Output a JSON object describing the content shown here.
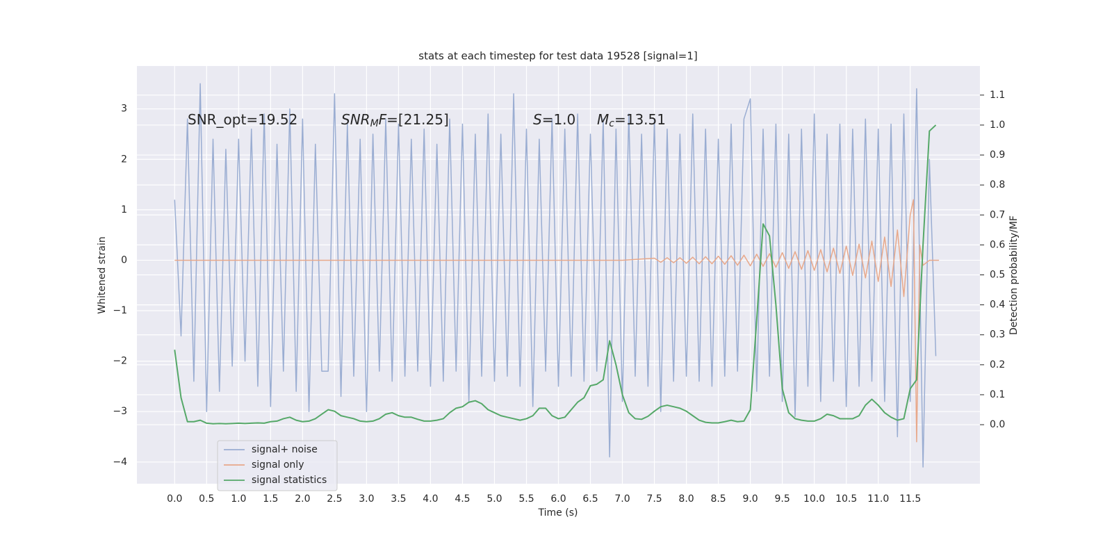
{
  "chart_data": {
    "type": "line",
    "title": "stats at each timestep for test data 19528 [signal=1]",
    "xlabel": "Time (s)",
    "ylabel": "Whitened strain",
    "y2label": "Detection probability/MF",
    "xlim": [
      -0.59,
      12.59
    ],
    "ylim": [
      -4.43,
      3.85
    ],
    "y2lim": [
      -0.197,
      1.197
    ],
    "xticks": [
      {
        "value": 0,
        "label": "0.0"
      },
      0.5,
      {
        "value": 1,
        "label": "1.0"
      },
      1.5,
      {
        "value": 2,
        "label": "2.0"
      },
      2.5,
      {
        "value": 3,
        "label": "3.0"
      },
      3.5,
      {
        "value": 4,
        "label": "4.0"
      },
      4.5,
      {
        "value": 5,
        "label": "5.0"
      },
      5.5,
      {
        "value": 6,
        "label": "6.0"
      },
      6.5,
      {
        "value": 7,
        "label": "7.0"
      },
      7.5,
      {
        "value": 8,
        "label": "8.0"
      },
      8.5,
      {
        "value": 9,
        "label": "9.0"
      },
      9.5,
      {
        "value": 10,
        "label": "10.0"
      },
      10.5,
      {
        "value": 11,
        "label": "11.0"
      },
      11.5
    ],
    "yticks": [
      {
        "value": -4,
        "label": "−4"
      },
      {
        "value": -3,
        "label": "−3"
      },
      {
        "value": -2,
        "label": "−2"
      },
      {
        "value": -1,
        "label": "−1"
      },
      0,
      1,
      2,
      3
    ],
    "y2ticks": [
      {
        "value": 0,
        "label": "0.0"
      },
      0.1,
      0.2,
      0.3,
      0.4,
      0.5,
      0.6,
      0.7,
      0.8,
      0.9,
      {
        "value": 1,
        "label": "1.0"
      },
      1.1
    ],
    "grid": true,
    "legend": "lower left",
    "annotations": [
      {
        "parts": [
          {
            "text": "SNR_opt=19.52",
            "style": "normal"
          }
        ]
      },
      {
        "parts": [
          {
            "text": "SNR",
            "style": "italic"
          },
          {
            "text": "M",
            "style": "sub"
          },
          {
            "text": "F",
            "style": "italic"
          },
          {
            "text": "=[21.25]",
            "style": "normal"
          }
        ]
      },
      {
        "parts": [
          {
            "text": "S",
            "style": "italic"
          },
          {
            "text": "=1.0",
            "style": "normal"
          }
        ]
      },
      {
        "parts": [
          {
            "text": "M",
            "style": "italic"
          },
          {
            "text": "c",
            "style": "sub"
          },
          {
            "text": "=13.51",
            "style": "normal"
          }
        ]
      }
    ],
    "x": [
      0,
      0.1,
      0.2,
      0.3,
      0.4,
      0.5,
      0.6,
      0.7,
      0.8,
      0.9,
      1,
      1.1,
      1.2,
      1.3,
      1.4,
      1.5,
      1.6,
      1.7,
      1.8,
      1.9,
      2,
      2.1,
      2.2,
      2.3,
      2.4,
      2.5,
      2.6,
      2.7,
      2.8,
      2.9,
      3,
      3.1,
      3.2,
      3.3,
      3.4,
      3.5,
      3.6,
      3.7,
      3.8,
      3.9,
      4,
      4.1,
      4.2,
      4.3,
      4.4,
      4.5,
      4.6,
      4.7,
      4.8,
      4.9,
      5,
      5.1,
      5.2,
      5.3,
      5.4,
      5.5,
      5.6,
      5.7,
      5.8,
      5.9,
      6,
      6.1,
      6.2,
      6.3,
      6.4,
      6.5,
      6.6,
      6.7,
      6.8,
      6.9,
      7,
      7.1,
      7.2,
      7.3,
      7.4,
      7.5,
      7.6,
      7.7,
      7.8,
      7.9,
      8,
      8.1,
      8.2,
      8.3,
      8.4,
      8.5,
      8.6,
      8.7,
      8.8,
      8.9,
      9,
      9.1,
      9.2,
      9.3,
      9.4,
      9.5,
      9.6,
      9.7,
      9.8,
      9.9,
      10,
      10.1,
      10.2,
      10.3,
      10.4,
      10.5,
      10.6,
      10.7,
      10.8,
      10.9,
      11,
      11.1,
      11.2,
      11.3,
      11.4,
      11.5,
      11.6,
      11.7,
      11.8,
      11.9
    ],
    "series": [
      {
        "name": "signal+ noise",
        "color": "#9aadd2",
        "values": [
          1.2,
          -1.5,
          2.8,
          -2.4,
          3.5,
          -3.0,
          2.4,
          -2.6,
          2.2,
          -2.1,
          2.4,
          -2.0,
          2.6,
          -2.5,
          2.9,
          -2.9,
          2.3,
          -2.2,
          3.0,
          -2.6,
          2.8,
          -3.0,
          2.3,
          -2.2,
          -2.2,
          3.3,
          -2.7,
          2.7,
          -2.3,
          2.4,
          -3.0,
          2.5,
          -2.2,
          2.8,
          -2.4,
          2.7,
          -2.3,
          2.4,
          -2.2,
          2.6,
          -2.5,
          2.3,
          -2.4,
          2.8,
          -2.2,
          2.7,
          -2.8,
          2.5,
          -2.3,
          2.9,
          -2.4,
          2.5,
          -2.3,
          3.3,
          -2.5,
          2.6,
          -2.9,
          2.4,
          -2.2,
          2.8,
          -2.5,
          2.6,
          -2.3,
          2.9,
          -2.4,
          2.5,
          -2.2,
          2.8,
          -3.9,
          2.6,
          -2.8,
          2.9,
          -2.3,
          2.5,
          -2.5,
          2.8,
          -3.0,
          2.6,
          -2.4,
          2.5,
          -2.3,
          2.9,
          -2.4,
          2.6,
          -2.5,
          2.4,
          -2.3,
          2.7,
          -2.2,
          2.8,
          3.2,
          -2.6,
          2.6,
          -2.3,
          2.7,
          -2.8,
          2.5,
          -3.1,
          2.6,
          -2.5,
          2.9,
          -2.8,
          2.5,
          -2.4,
          2.7,
          -2.9,
          2.6,
          -2.5,
          2.8,
          -2.4,
          2.6,
          -2.8,
          2.7,
          -3.5,
          2.9,
          -2.8,
          3.4,
          -4.1,
          2.0,
          -1.9
        ]
      },
      {
        "name": "signal only",
        "color": "#e8a88a",
        "x": [
          0,
          1,
          2,
          3,
          4,
          5,
          6,
          7,
          7.5,
          7.6,
          7.7,
          7.8,
          7.9,
          8.0,
          8.1,
          8.2,
          8.3,
          8.4,
          8.5,
          8.6,
          8.7,
          8.8,
          8.9,
          9.0,
          9.1,
          9.2,
          9.3,
          9.4,
          9.5,
          9.6,
          9.7,
          9.8,
          9.9,
          10.0,
          10.1,
          10.2,
          10.3,
          10.4,
          10.5,
          10.6,
          10.7,
          10.8,
          10.9,
          11.0,
          11.1,
          11.2,
          11.3,
          11.4,
          11.5,
          11.55,
          11.6,
          11.65,
          11.7,
          11.8,
          11.95
        ],
        "values": [
          0,
          0,
          0,
          0,
          0,
          0,
          0,
          0,
          0.04,
          -0.04,
          0.05,
          -0.05,
          0.05,
          -0.06,
          0.06,
          -0.07,
          0.07,
          -0.07,
          0.08,
          -0.08,
          0.09,
          -0.1,
          0.1,
          -0.11,
          0.12,
          -0.12,
          0.13,
          -0.14,
          0.15,
          -0.16,
          0.17,
          -0.18,
          0.19,
          -0.2,
          0.21,
          -0.23,
          0.24,
          -0.26,
          0.28,
          -0.3,
          0.32,
          -0.35,
          0.38,
          -0.42,
          0.46,
          -0.52,
          0.6,
          -0.72,
          0.9,
          1.2,
          -3.6,
          0.3,
          -0.1,
          0,
          0
        ]
      },
      {
        "name": "signal statistics",
        "color": "#55a868",
        "axis": "y2",
        "values": [
          0.25,
          0.09,
          0.01,
          0.01,
          0.015,
          0.005,
          0.003,
          0.004,
          0.003,
          0.004,
          0.005,
          0.004,
          0.005,
          0.006,
          0.005,
          0.01,
          0.012,
          0.02,
          0.025,
          0.015,
          0.01,
          0.012,
          0.02,
          0.035,
          0.05,
          0.045,
          0.03,
          0.025,
          0.02,
          0.012,
          0.01,
          0.012,
          0.02,
          0.035,
          0.04,
          0.03,
          0.025,
          0.025,
          0.018,
          0.012,
          0.012,
          0.015,
          0.02,
          0.04,
          0.055,
          0.06,
          0.075,
          0.08,
          0.07,
          0.05,
          0.04,
          0.03,
          0.025,
          0.02,
          0.015,
          0.02,
          0.03,
          0.055,
          0.055,
          0.03,
          0.02,
          0.025,
          0.05,
          0.075,
          0.09,
          0.13,
          0.135,
          0.15,
          0.28,
          0.2,
          0.1,
          0.04,
          0.02,
          0.018,
          0.028,
          0.045,
          0.06,
          0.065,
          0.06,
          0.055,
          0.045,
          0.03,
          0.015,
          0.008,
          0.006,
          0.006,
          0.01,
          0.015,
          0.01,
          0.012,
          0.05,
          0.35,
          0.67,
          0.63,
          0.4,
          0.12,
          0.04,
          0.02,
          0.015,
          0.012,
          0.012,
          0.02,
          0.035,
          0.03,
          0.02,
          0.02,
          0.02,
          0.03,
          0.065,
          0.085,
          0.065,
          0.04,
          0.025,
          0.015,
          0.02,
          0.12,
          0.15,
          0.6,
          0.98,
          1.0
        ]
      }
    ]
  }
}
